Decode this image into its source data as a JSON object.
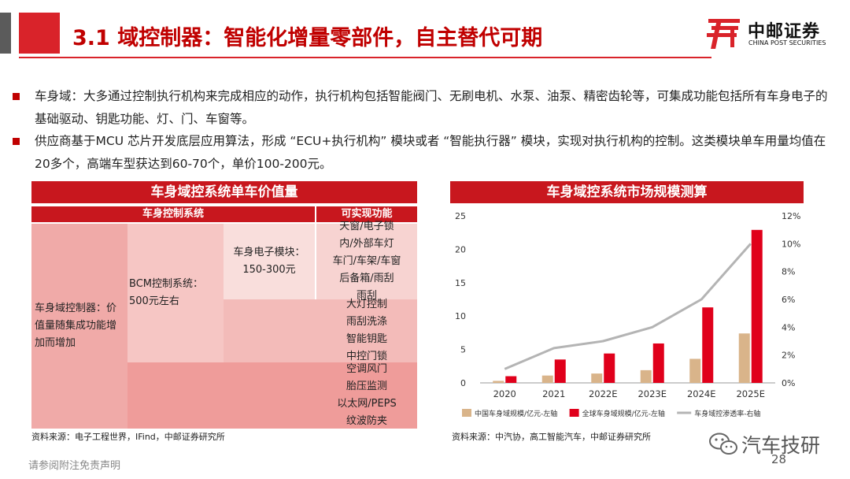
{
  "title": "3.1 域控制器：智能化增量零部件，自主替代可期",
  "logo": {
    "cn": "中邮证券",
    "en": "CHINA POST SECURITIES"
  },
  "bullets": [
    "车身域：大多通过控制执行机构来完成相应的动作，执行机构包括智能阀门、无刷电机、水泵、油泵、精密齿轮等，可集成功能包括所有车身电子的基础驱动、钥匙功能、灯、门、车窗等。",
    "供应商基于MCU 芯片开发底层应用算法，形成 “ECU+执行机构” 模块或者 “智能执行器” 模块，实现对执行机构的控制。这类模块单车用量均值在20多个，高端车型获达到60-70个，单价100-200元。"
  ],
  "left_panel": {
    "banner": "车身域控系统单车价值量",
    "header_control": "车身控制系统",
    "header_function": "可实现功能",
    "domain_controller": "车身域控制器：价值量随集成功能增加而增加",
    "bcm": "BCM控制系统：500元左右",
    "module": "车身电子模块：150-300元",
    "funcs_module": [
      "天窗/电子锁",
      "内/外部车灯",
      "车门/车架/车窗",
      "后备箱/雨刮",
      "雨刮"
    ],
    "funcs_bcm": [
      "大灯控制",
      "雨刮洗涤",
      "智能钥匙",
      "中控门锁"
    ],
    "funcs_domain": [
      "空调风门",
      "胎压监测",
      "以太网/PEPS",
      "纹波防夹"
    ],
    "source": "资料来源：电子工程世界，IFind，中邮证券研究所"
  },
  "right_panel": {
    "banner": "车身域控系统市场规模测算",
    "source": "资料来源：中汽协，高工智能汽车，中邮证券研究所"
  },
  "chart_data": {
    "type": "bar",
    "categories": [
      "2020",
      "2021",
      "2022E",
      "2023E",
      "2024E",
      "2025E"
    ],
    "series": [
      {
        "name": "中国车身域规模/亿元-左轴",
        "type": "bar",
        "axis": "left",
        "color": "#d9b48a",
        "values": [
          0.3,
          1.1,
          1.4,
          1.9,
          3.6,
          7.4
        ]
      },
      {
        "name": "全球车身域规模/亿元-左轴",
        "type": "bar",
        "axis": "left",
        "color": "#e0001b",
        "values": [
          1.0,
          3.5,
          4.4,
          5.9,
          11.3,
          22.9
        ]
      },
      {
        "name": "车身域控渗透率-右轴",
        "type": "line",
        "axis": "right",
        "color": "#b4b4b4",
        "values": [
          1.0,
          2.5,
          3.0,
          4.0,
          6.0,
          10.0
        ]
      }
    ],
    "ylim_left": [
      0,
      25
    ],
    "yticks_left": [
      "0",
      "5",
      "10",
      "15",
      "20",
      "25"
    ],
    "ylim_right": [
      0,
      12
    ],
    "yticks_right": [
      "0%",
      "2%",
      "4%",
      "6%",
      "8%",
      "10%",
      "12%"
    ],
    "grid": false,
    "legend": "bottom"
  },
  "watermark": "汽车技研",
  "page_number": "28",
  "disclaimer": "请参阅附注免责声明",
  "colors": {
    "brand_red": "#c8171e",
    "title_red": "#c00000"
  }
}
